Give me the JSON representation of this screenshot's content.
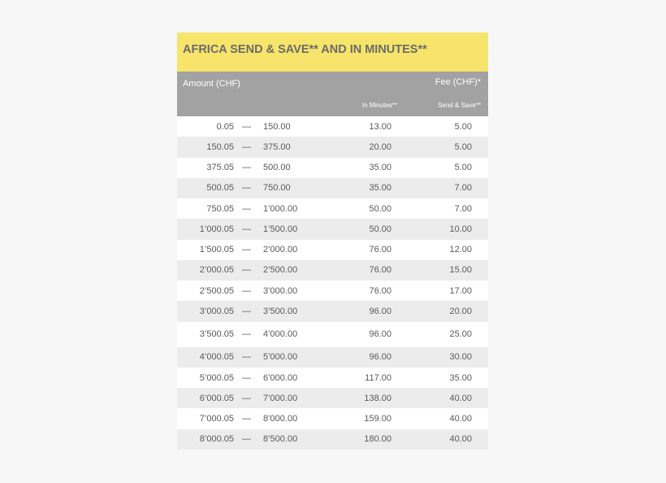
{
  "title": "AFRICA SEND & SAVE** AND IN MINUTES**",
  "header": {
    "amount": "Amount (CHF)",
    "fee": "Fee (CHF)*",
    "in_minutes": "In Minutes**",
    "send_save": "Send & Save**"
  },
  "separator": "—",
  "colors": {
    "title_bg": "#f6e46b",
    "header_bg": "#a2a2a2",
    "alt_row": "#ececec"
  },
  "rows": [
    {
      "from": "0.05",
      "to": "150.00",
      "in_minutes": "13.00",
      "send_save": "5.00"
    },
    {
      "from": "150.05",
      "to": "375.00",
      "in_minutes": "20.00",
      "send_save": "5.00"
    },
    {
      "from": "375.05",
      "to": "500.00",
      "in_minutes": "35.00",
      "send_save": "5.00"
    },
    {
      "from": "500.05",
      "to": "750.00",
      "in_minutes": "35.00",
      "send_save": "7.00"
    },
    {
      "from": "750.05",
      "to": "1’000.00",
      "in_minutes": "50.00",
      "send_save": "7.00"
    },
    {
      "from": "1’000.05",
      "to": "1’500.00",
      "in_minutes": "50.00",
      "send_save": "10.00"
    },
    {
      "from": "1’500.05",
      "to": "2’000.00",
      "in_minutes": "76.00",
      "send_save": "12.00"
    },
    {
      "from": "2’000.05",
      "to": " 2’500.00",
      "in_minutes": "76.00",
      "send_save": "15.00"
    },
    {
      "from": "2’500.05",
      "to": "3’000.00",
      "in_minutes": "76.00",
      "send_save": "17.00"
    },
    {
      "from": "3’000.05",
      "to": "3’500.00",
      "in_minutes": "96.00",
      "send_save": "20.00"
    },
    {
      "from": "3’500.05",
      "to": "4’000.00",
      "in_minutes": "96.00",
      "send_save": "25.00"
    },
    {
      "from": "4’000.05",
      "to": "5’000.00",
      "in_minutes": "96.00",
      "send_save": "30.00"
    },
    {
      "from": "5’000.05",
      "to": "6’000.00",
      "in_minutes": "117.00",
      "send_save": "35.00"
    },
    {
      "from": "6’000.05",
      "to": "7’000.00",
      "in_minutes": "138.00",
      "send_save": "40.00"
    },
    {
      "from": "7’000.05",
      "to": "8’000.00",
      "in_minutes": "159.00",
      "send_save": "40.00"
    },
    {
      "from": "8’000.05",
      "to": "8’500.00",
      "in_minutes": "180.00",
      "send_save": "40.00"
    }
  ]
}
